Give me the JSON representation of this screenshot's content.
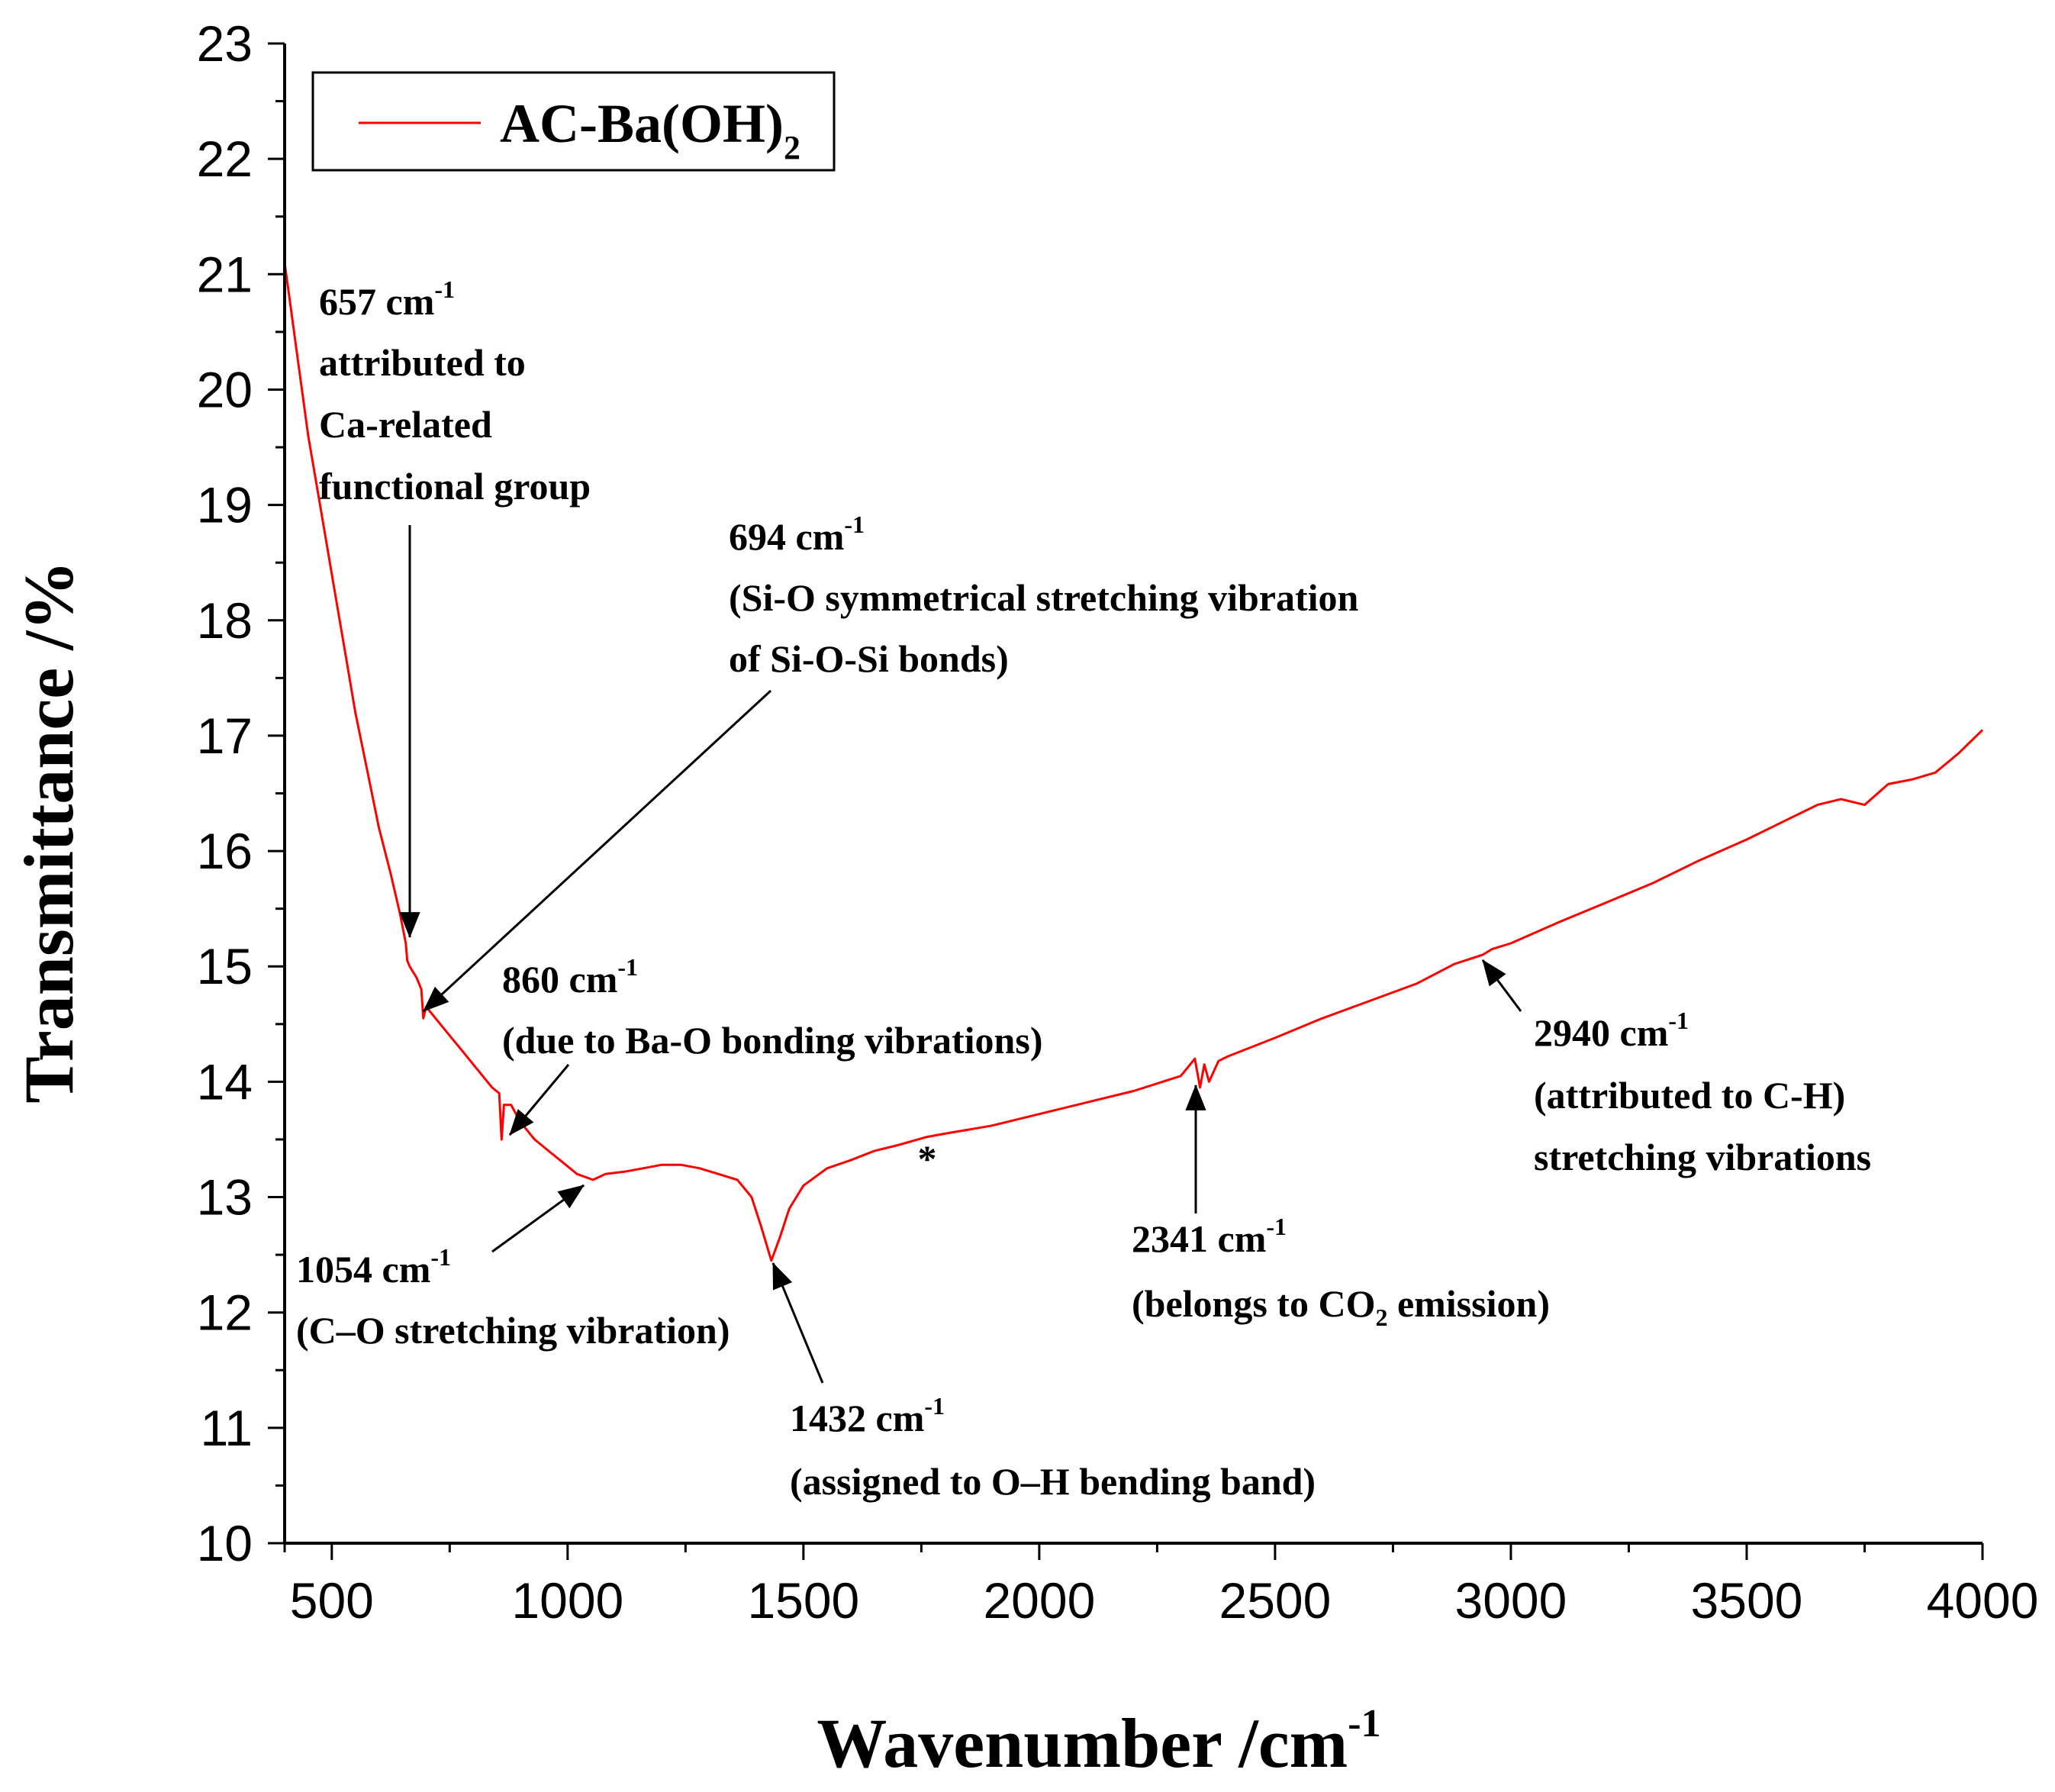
{
  "chart_data": {
    "type": "line",
    "xlabel": "Wavenumber /cm",
    "xlabel_sup": "-1",
    "ylabel": "Transmittance /%",
    "xlim": [
      400,
      4000
    ],
    "ylim": [
      10,
      23
    ],
    "x_ticks": [
      500,
      1000,
      1500,
      2000,
      2500,
      3000,
      3500,
      4000
    ],
    "y_ticks": [
      10,
      11,
      12,
      13,
      14,
      15,
      16,
      17,
      18,
      19,
      20,
      21,
      22,
      23
    ],
    "legend": {
      "position": "top-left",
      "label": "AC-Ba(OH)",
      "label_sub": "2"
    },
    "grid": false,
    "series": [
      {
        "name": "AC-Ba(OH)2",
        "color": "#ff0000",
        "points": [
          [
            400,
            21.1
          ],
          [
            410,
            20.8
          ],
          [
            430,
            20.2
          ],
          [
            450,
            19.6
          ],
          [
            475,
            19.0
          ],
          [
            500,
            18.4
          ],
          [
            525,
            17.8
          ],
          [
            550,
            17.2
          ],
          [
            575,
            16.7
          ],
          [
            600,
            16.2
          ],
          [
            625,
            15.8
          ],
          [
            645,
            15.45
          ],
          [
            657,
            15.2
          ],
          [
            660,
            15.05
          ],
          [
            665,
            15.0
          ],
          [
            680,
            14.9
          ],
          [
            690,
            14.8
          ],
          [
            694,
            14.55
          ],
          [
            700,
            14.65
          ],
          [
            720,
            14.55
          ],
          [
            750,
            14.4
          ],
          [
            780,
            14.25
          ],
          [
            810,
            14.1
          ],
          [
            840,
            13.95
          ],
          [
            855,
            13.9
          ],
          [
            860,
            13.5
          ],
          [
            865,
            13.8
          ],
          [
            880,
            13.8
          ],
          [
            900,
            13.65
          ],
          [
            930,
            13.5
          ],
          [
            960,
            13.4
          ],
          [
            990,
            13.3
          ],
          [
            1020,
            13.2
          ],
          [
            1054,
            13.15
          ],
          [
            1080,
            13.2
          ],
          [
            1120,
            13.22
          ],
          [
            1160,
            13.25
          ],
          [
            1200,
            13.28
          ],
          [
            1240,
            13.28
          ],
          [
            1280,
            13.25
          ],
          [
            1320,
            13.2
          ],
          [
            1360,
            13.15
          ],
          [
            1390,
            13.0
          ],
          [
            1410,
            12.75
          ],
          [
            1432,
            12.45
          ],
          [
            1450,
            12.65
          ],
          [
            1470,
            12.9
          ],
          [
            1500,
            13.1
          ],
          [
            1550,
            13.25
          ],
          [
            1600,
            13.32
          ],
          [
            1650,
            13.4
          ],
          [
            1700,
            13.45
          ],
          [
            1760,
            13.52
          ],
          [
            1800,
            13.55
          ],
          [
            1900,
            13.62
          ],
          [
            2000,
            13.72
          ],
          [
            2100,
            13.82
          ],
          [
            2200,
            13.92
          ],
          [
            2300,
            14.05
          ],
          [
            2320,
            14.15
          ],
          [
            2330,
            14.2
          ],
          [
            2341,
            13.95
          ],
          [
            2350,
            14.15
          ],
          [
            2360,
            14.0
          ],
          [
            2380,
            14.18
          ],
          [
            2400,
            14.22
          ],
          [
            2500,
            14.38
          ],
          [
            2600,
            14.55
          ],
          [
            2700,
            14.7
          ],
          [
            2800,
            14.85
          ],
          [
            2880,
            15.02
          ],
          [
            2940,
            15.1
          ],
          [
            2960,
            15.15
          ],
          [
            3000,
            15.2
          ],
          [
            3100,
            15.38
          ],
          [
            3200,
            15.55
          ],
          [
            3300,
            15.72
          ],
          [
            3400,
            15.92
          ],
          [
            3500,
            16.1
          ],
          [
            3600,
            16.3
          ],
          [
            3650,
            16.4
          ],
          [
            3700,
            16.45
          ],
          [
            3750,
            16.4
          ],
          [
            3800,
            16.58
          ],
          [
            3850,
            16.62
          ],
          [
            3900,
            16.68
          ],
          [
            3950,
            16.85
          ],
          [
            4000,
            17.05
          ]
        ]
      }
    ],
    "annotations": [
      {
        "lines": [
          "657 cm",
          "attributed to",
          "Ca-related",
          "functional group"
        ],
        "sup": "-1"
      },
      {
        "lines": [
          "694 cm",
          "(Si-O symmetrical stretching vibration",
          "of Si-O-Si bonds)"
        ],
        "sup": "-1"
      },
      {
        "lines": [
          "860 cm",
          "(due to Ba-O bonding vibrations)"
        ],
        "sup": "-1"
      },
      {
        "lines": [
          "1054 cm",
          "(C–O stretching vibration)"
        ],
        "sup": "-1"
      },
      {
        "lines": [
          "1432 cm",
          "(assigned to O–H bending band)"
        ],
        "sup": "-1"
      },
      {
        "lines": [
          "2341 cm",
          "(belongs to CO",
          " emission)"
        ],
        "sup": "-1",
        "sub": "2"
      },
      {
        "lines": [
          "2940 cm",
          "(attributed to C-H)",
          "stretching vibrations"
        ],
        "sup": "-1"
      }
    ],
    "marker": "*"
  }
}
